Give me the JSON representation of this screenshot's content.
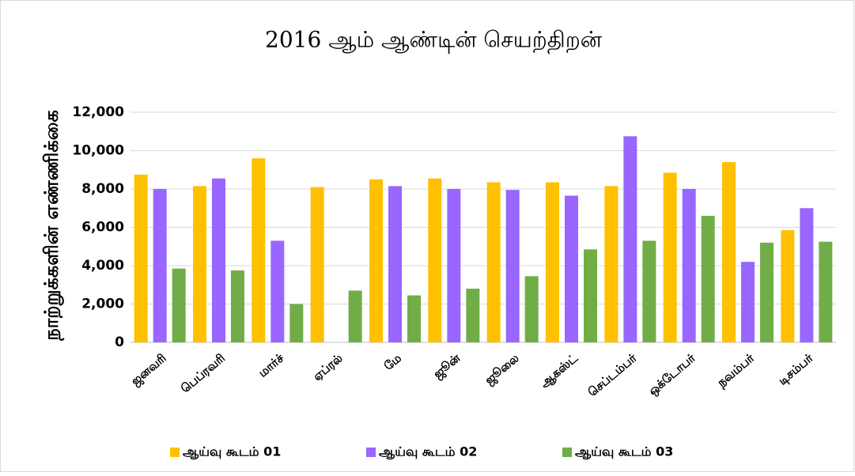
{
  "chart_data": {
    "type": "bar",
    "title": "2016 ஆம்  ஆண்டின்  செயற்திறன்",
    "y_label": "நாற்றுக்களின்  எண்ணிக்கை",
    "categories": [
      "ஜனவரி",
      "பெப்ரவரி",
      "மார்ச்",
      "ஏப்ரல்",
      "மே",
      "ஜூன்",
      "ஜூலை",
      "ஆகஸ்ட்",
      "செப்டம்பர்",
      "ஒக்டோபர்",
      "நவம்பர்",
      "டிசம்பர்"
    ],
    "series": [
      {
        "name": "ஆய்வு  கூடம்  01",
        "color": "#ffc000",
        "values": [
          8750,
          8150,
          9600,
          8100,
          8500,
          8550,
          8350,
          8350,
          8150,
          8850,
          9400,
          5850
        ]
      },
      {
        "name": "ஆய்வு  கூடம்  02",
        "color": "#9966ff",
        "values": [
          8000,
          8550,
          5300,
          null,
          8150,
          8000,
          7950,
          7650,
          10750,
          8000,
          4200,
          7000
        ]
      },
      {
        "name": "ஆய்வு  கூடம்  03",
        "color": "#70ad47",
        "values": [
          3850,
          3750,
          2000,
          2700,
          2450,
          2800,
          3450,
          4850,
          5300,
          6600,
          5200,
          5250
        ]
      }
    ],
    "ylim": [
      0,
      12000
    ],
    "yticks": [
      0,
      {
        "value": 2000,
        "label": "2,000"
      },
      {
        "value": 4000,
        "label": "4,000"
      },
      {
        "value": 6000,
        "label": "6,000"
      },
      {
        "value": 8000,
        "label": "8,000"
      },
      {
        "value": 10000,
        "label": "10,000"
      },
      {
        "value": 12000,
        "label": "12,000"
      }
    ],
    "grid": true,
    "legend": "bottom"
  }
}
